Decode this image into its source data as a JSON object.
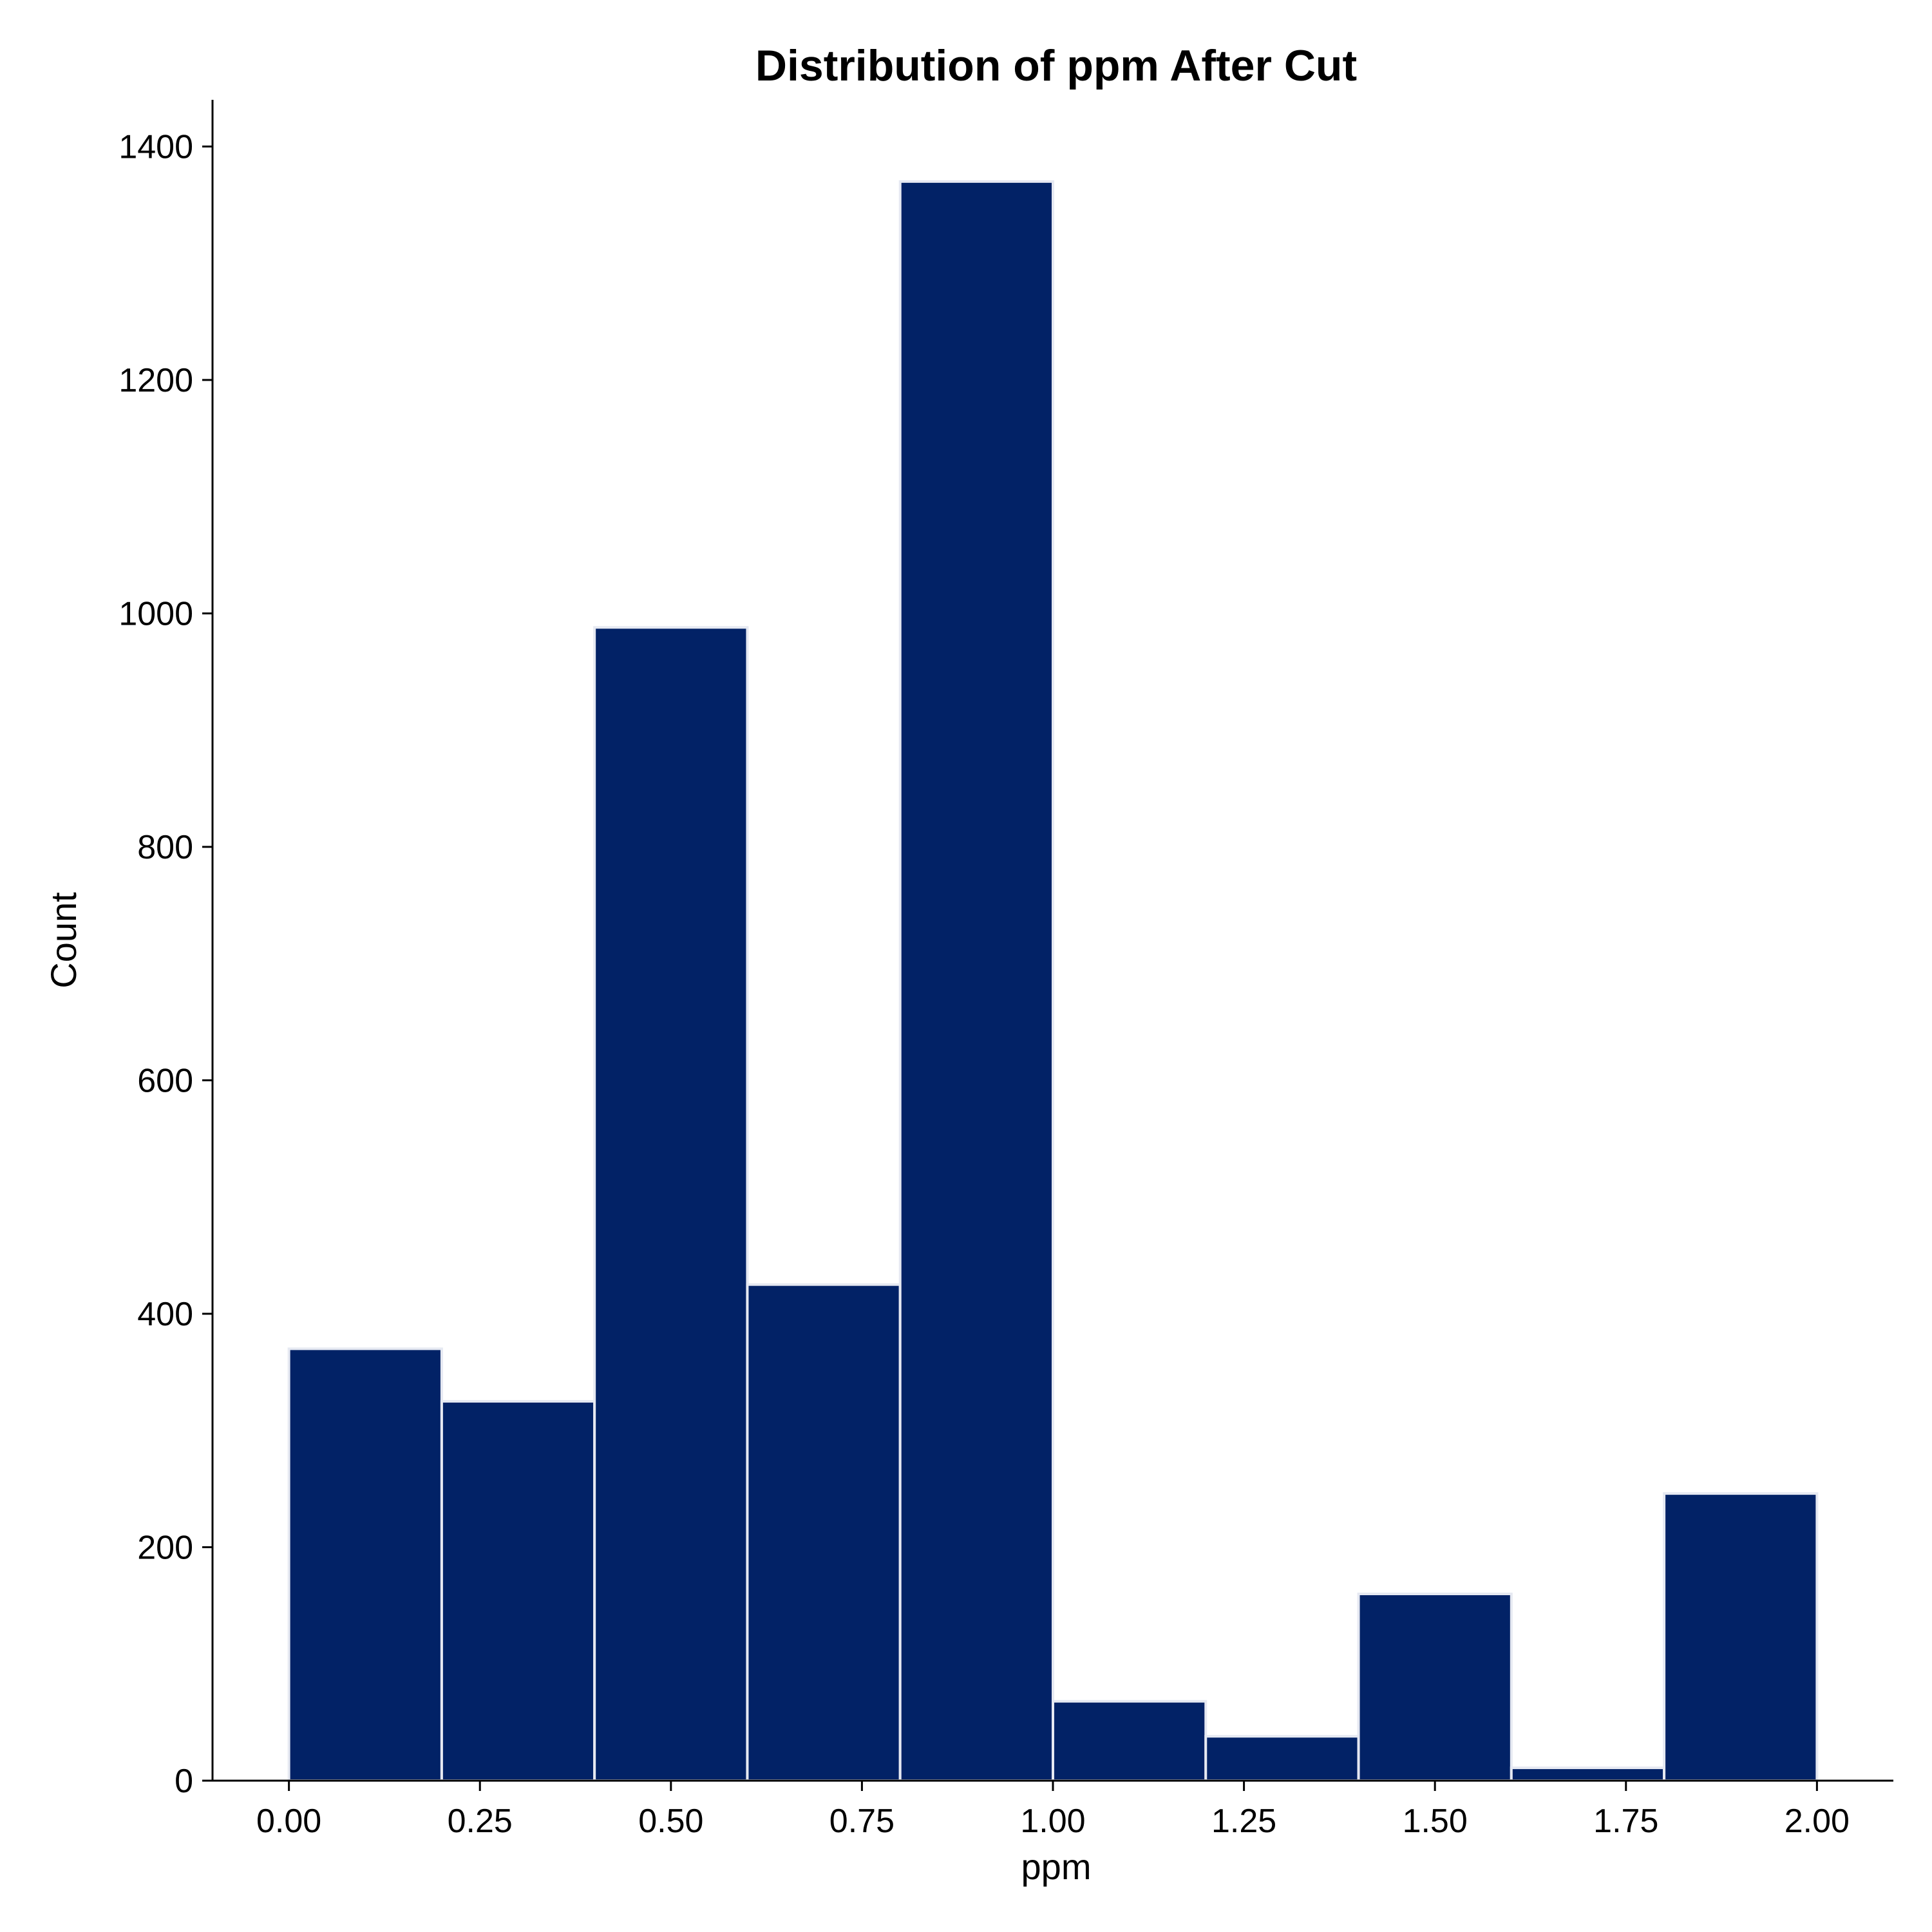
{
  "chart_data": {
    "type": "bar",
    "title": "Distribution of ppm After Cut",
    "xlabel": "ppm",
    "ylabel": "Count",
    "bin_edges": [
      0.0,
      0.2,
      0.4,
      0.6,
      0.8,
      1.0,
      1.2,
      1.4,
      1.6,
      1.8,
      2.0
    ],
    "values": [
      370,
      325,
      988,
      425,
      1370,
      68,
      38,
      160,
      11,
      246
    ],
    "xlim": [
      -0.1,
      2.1
    ],
    "ylim": [
      0,
      1440
    ],
    "x_ticks": [
      {
        "value": 0.0,
        "label": "0.00"
      },
      {
        "value": 0.25,
        "label": "0.25"
      },
      {
        "value": 0.5,
        "label": "0.50"
      },
      {
        "value": 0.75,
        "label": "0.75"
      },
      {
        "value": 1.0,
        "label": "1.00"
      },
      {
        "value": 1.25,
        "label": "1.25"
      },
      {
        "value": 1.5,
        "label": "1.50"
      },
      {
        "value": 1.75,
        "label": "1.75"
      },
      {
        "value": 2.0,
        "label": "2.00"
      }
    ],
    "y_ticks": [
      {
        "value": 0,
        "label": "0"
      },
      {
        "value": 200,
        "label": "200"
      },
      {
        "value": 400,
        "label": "400"
      },
      {
        "value": 600,
        "label": "600"
      },
      {
        "value": 800,
        "label": "800"
      },
      {
        "value": 1000,
        "label": "1000"
      },
      {
        "value": 1200,
        "label": "1200"
      },
      {
        "value": 1400,
        "label": "1400"
      }
    ],
    "bar_color": "#022266",
    "bar_edge_color": "#e6e9f2",
    "grid": false,
    "legend": "none"
  }
}
